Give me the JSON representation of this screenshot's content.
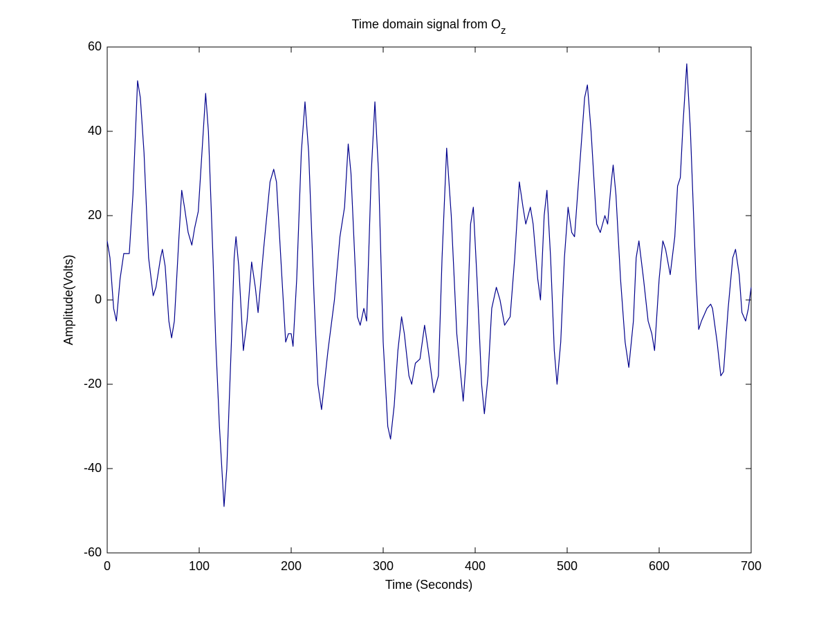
{
  "chart_data": {
    "type": "line",
    "title": "Time domain signal from O",
    "title_subscript": "z",
    "x_label": "Time (Seconds)",
    "y_label": "Amplitude(Volts)",
    "x": [
      0,
      3,
      7,
      10,
      14,
      18,
      22,
      24,
      28,
      33,
      36,
      40,
      45,
      50,
      53,
      58,
      60,
      63,
      67,
      70,
      73,
      78,
      81,
      84,
      88,
      92,
      95,
      99,
      103,
      107,
      110,
      115,
      118,
      122,
      127,
      130,
      135,
      138,
      140,
      143,
      148,
      152,
      157,
      161,
      164,
      170,
      177,
      181,
      184,
      190,
      194,
      197,
      200,
      202,
      206,
      211,
      215,
      219,
      225,
      229,
      233,
      240,
      247,
      253,
      258,
      262,
      265,
      272,
      275,
      279,
      282,
      287,
      291,
      295,
      300,
      305,
      308,
      312,
      316,
      320,
      323,
      328,
      331,
      335,
      340,
      345,
      349,
      355,
      360,
      364,
      369,
      374,
      380,
      387,
      390,
      395,
      398,
      402,
      407,
      410,
      414,
      418,
      423,
      427,
      432,
      438,
      443,
      448,
      452,
      455,
      460,
      463,
      468,
      471,
      475,
      478,
      482,
      486,
      489,
      493,
      497,
      501,
      505,
      508,
      513,
      519,
      522,
      526,
      532,
      536,
      541,
      544,
      548,
      550,
      553,
      558,
      563,
      567,
      572,
      575,
      578,
      583,
      588,
      592,
      595,
      600,
      604,
      607,
      612,
      617,
      620,
      623,
      626,
      630,
      634,
      640,
      643,
      646,
      652,
      656,
      658,
      663,
      667,
      670,
      675,
      680,
      683,
      687,
      690,
      694,
      697,
      700
    ],
    "series": [
      {
        "name": "Oz",
        "color": "#00008b",
        "values": [
          14,
          10,
          -2,
          -5,
          5,
          11,
          11,
          11,
          25,
          52,
          48,
          35,
          10,
          1,
          3,
          10,
          12,
          8,
          -5,
          -9,
          -5,
          15,
          26,
          22,
          16,
          13,
          17,
          21,
          35,
          49,
          40,
          10,
          -10,
          -30,
          -49,
          -40,
          -10,
          10,
          15,
          8,
          -12,
          -5,
          9,
          3,
          -3,
          12,
          28,
          31,
          28,
          5,
          -10,
          -8,
          -8,
          -11,
          5,
          35,
          47,
          35,
          0,
          -20,
          -26,
          -12,
          0,
          15,
          22,
          37,
          30,
          -4,
          -6,
          -2,
          -5,
          30,
          47,
          30,
          -10,
          -30,
          -33,
          -25,
          -12,
          -4,
          -8,
          -18,
          -20,
          -15,
          -14,
          -6,
          -12,
          -22,
          -18,
          10,
          36,
          20,
          -8,
          -24,
          -15,
          18,
          22,
          5,
          -20,
          -27,
          -18,
          -2,
          3,
          0,
          -6,
          -4,
          10,
          28,
          22,
          18,
          22,
          18,
          5,
          0,
          20,
          26,
          10,
          -12,
          -20,
          -10,
          10,
          22,
          16,
          15,
          30,
          48,
          51,
          40,
          18,
          16,
          20,
          18,
          28,
          32,
          25,
          5,
          -10,
          -16,
          -5,
          10,
          14,
          5,
          -5,
          -8,
          -12,
          5,
          14,
          12,
          6,
          15,
          27,
          29,
          42,
          56,
          40,
          5,
          -7,
          -5,
          -2,
          -1,
          -2,
          -10,
          -18,
          -17,
          -2,
          10,
          12,
          6,
          -3,
          -5,
          -2,
          3
        ]
      }
    ],
    "xlim": [
      0,
      700
    ],
    "xticks": [
      0,
      100,
      200,
      300,
      400,
      500,
      600,
      700
    ],
    "ylim": [
      -60,
      60
    ],
    "yticks": [
      -60,
      -40,
      -20,
      0,
      20,
      40,
      60
    ]
  }
}
